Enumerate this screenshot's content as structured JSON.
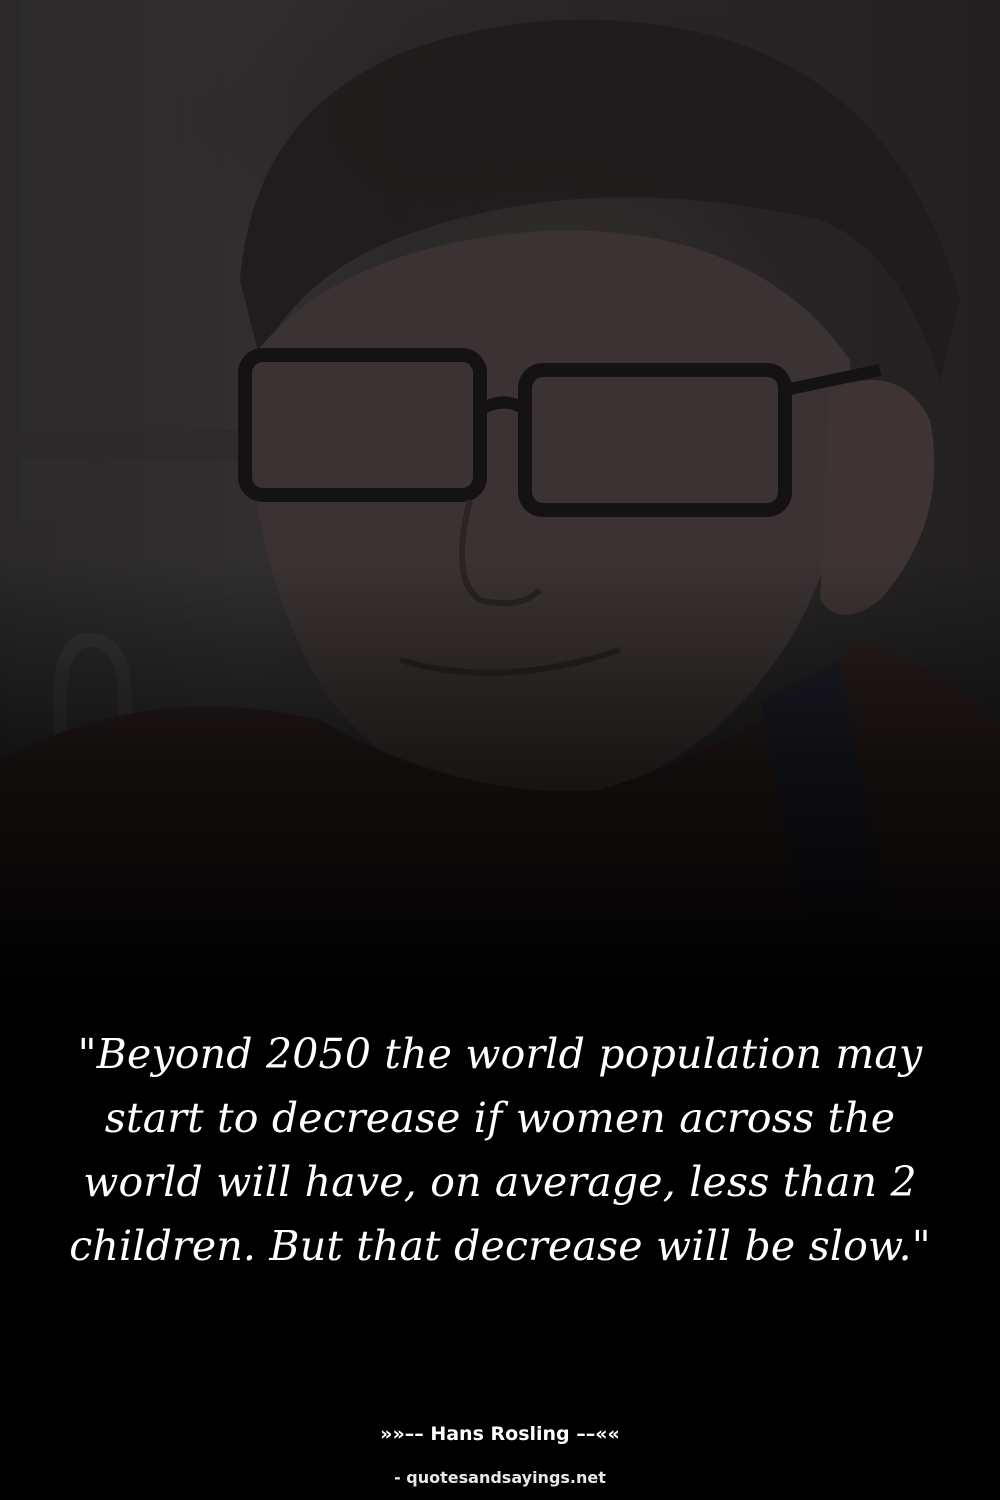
{
  "background": {
    "description_icon": "portrait-photo",
    "tint": "#000000"
  },
  "quote": {
    "text": "\"Beyond 2050 the world population may start to decrease if women across the world will have, on average, less than 2 children. But that decrease will be slow.\""
  },
  "author": {
    "text": "»»–– Hans Rosling ––««"
  },
  "source": {
    "text": "- quotesandsayings.net"
  },
  "colors": {
    "text": "#ffffff",
    "background": "#000000"
  }
}
